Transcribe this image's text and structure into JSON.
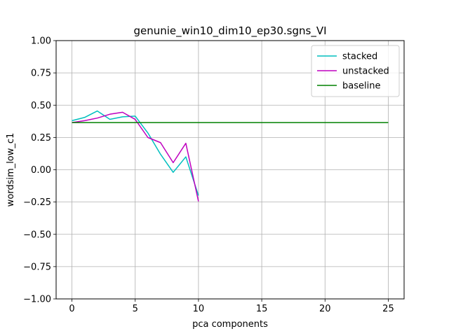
{
  "chart_data": {
    "type": "line",
    "title": "genunie_win10_dim10_ep30.sgns_VI",
    "xlabel": "pca components",
    "ylabel": "wordsim_low_c1",
    "xlim": [
      -1.25,
      26.25
    ],
    "ylim": [
      -1.0,
      1.0
    ],
    "xticks": [
      0,
      5,
      10,
      15,
      20,
      25
    ],
    "yticks": [
      -1.0,
      -0.75,
      -0.5,
      -0.25,
      0.0,
      0.25,
      0.5,
      0.75,
      1.0
    ],
    "xtick_labels": [
      "0",
      "5",
      "10",
      "15",
      "20",
      "25"
    ],
    "ytick_labels": [
      "−1.00",
      "−0.75",
      "−0.50",
      "−0.25",
      "0.00",
      "0.25",
      "0.50",
      "0.75",
      "1.00"
    ],
    "grid": true,
    "legend_position": "upper right",
    "series": [
      {
        "name": "stacked",
        "color": "#00bfbf",
        "x": [
          0,
          1,
          2,
          3,
          4,
          5,
          6,
          7,
          8,
          9,
          10
        ],
        "y": [
          0.38,
          0.405,
          0.455,
          0.39,
          0.41,
          0.415,
          0.285,
          0.12,
          -0.02,
          0.1,
          -0.2
        ]
      },
      {
        "name": "unstacked",
        "color": "#bf00bf",
        "x": [
          0,
          1,
          2,
          3,
          4,
          5,
          6,
          7,
          8,
          9,
          10
        ],
        "y": [
          0.365,
          0.38,
          0.4,
          0.43,
          0.445,
          0.39,
          0.25,
          0.21,
          0.055,
          0.205,
          -0.245
        ]
      },
      {
        "name": "baseline",
        "color": "#008000",
        "x": [
          0,
          25
        ],
        "y": [
          0.365,
          0.365
        ]
      }
    ]
  }
}
